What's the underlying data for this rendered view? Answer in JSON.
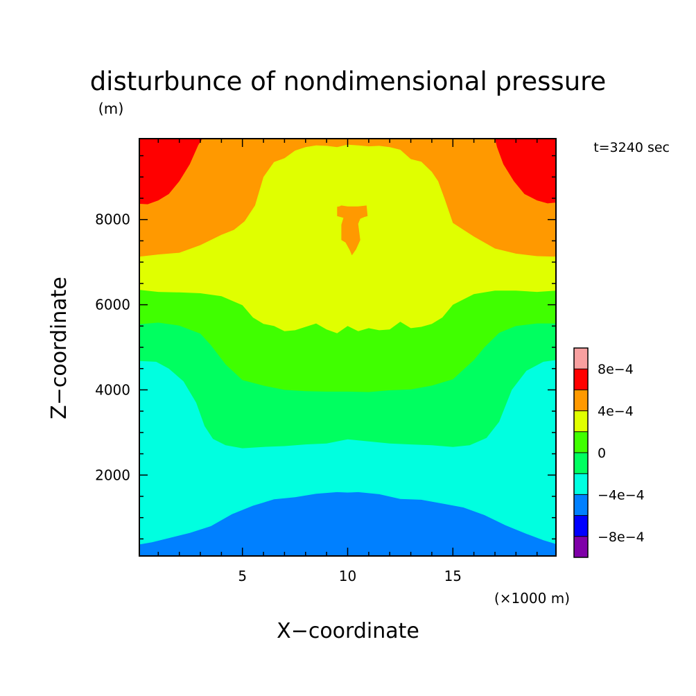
{
  "chart_data": {
    "type": "heatmap",
    "title": "disturbunce of nondimensional pressure",
    "title_unit": "(m)",
    "time_label": "t=3240 sec",
    "xlabel": "X−coordinate",
    "x_unit": "(×1000 m)",
    "ylabel": "Z−coordinate",
    "xlim": [
      0.1,
      19.9
    ],
    "ylim": [
      100,
      9900
    ],
    "x_ticks": [
      5,
      10,
      15
    ],
    "x_tick_labels": [
      "5",
      "10",
      "15"
    ],
    "y_ticks": [
      2000,
      4000,
      6000,
      8000
    ],
    "y_tick_labels": [
      "2000",
      "4000",
      "6000",
      "8000"
    ],
    "colorbar": {
      "levels": [
        -0.001,
        -0.0008,
        -0.0006,
        -0.0004,
        -0.0002,
        0,
        0.0002,
        0.0004,
        0.0006,
        0.0008,
        0.001
      ],
      "tick_labels": [
        "8e−4",
        "4e−4",
        "0",
        "−4e−4",
        "−8e−4"
      ],
      "tick_values": [
        0.0008,
        0.0004,
        0,
        -0.0004,
        -0.0008
      ],
      "colors": [
        "#7f00a8",
        "#0000ff",
        "#0080ff",
        "#00ffe0",
        "#00ff60",
        "#40ff00",
        "#e0ff00",
        "#ff9900",
        "#ff0000",
        "#f8a0a0"
      ]
    },
    "band_levels": [
      {
        "range": [
          -0.0006,
          -0.0004
        ],
        "color": "#0080ff"
      },
      {
        "range": [
          -0.0004,
          -0.0002
        ],
        "color": "#00ffe0"
      },
      {
        "range": [
          -0.0002,
          0
        ],
        "color": "#00ff60"
      },
      {
        "range": [
          0,
          0.0002
        ],
        "color": "#40ff00"
      },
      {
        "range": [
          0.0002,
          0.0004
        ],
        "color": "#e0ff00"
      },
      {
        "range": [
          0.0004,
          0.0006
        ],
        "color": "#ff9900"
      },
      {
        "range": [
          0.0006,
          0.0008
        ],
        "color": "#ff0000"
      }
    ],
    "contours": [
      {
        "name": "boundary-cyan",
        "x": [
          0.1,
          0.7,
          1.5,
          2.5,
          3.5,
          4.5,
          5.5,
          6.5,
          7.5,
          8.5,
          9.5,
          10.0,
          10.5,
          11.5,
          12.5,
          13.5,
          14.5,
          15.5,
          16.5,
          17.5,
          18.5,
          19.3,
          19.9
        ],
        "z": [
          370,
          420,
          520,
          640,
          800,
          1080,
          1280,
          1430,
          1480,
          1560,
          1600,
          1590,
          1600,
          1550,
          1440,
          1420,
          1330,
          1240,
          1060,
          820,
          620,
          470,
          380
        ]
      },
      {
        "name": "boundary-green",
        "x": [
          0.1,
          0.9,
          1.5,
          2.2,
          2.8,
          3.2,
          3.6,
          4.2,
          5.0,
          6.0,
          7.0,
          8.0,
          9.0,
          10.0,
          11.0,
          12.0,
          13.0,
          14.0,
          15.0,
          15.8,
          16.6,
          17.2,
          17.8,
          18.5,
          19.3,
          19.9
        ],
        "z": [
          4680,
          4660,
          4500,
          4200,
          3700,
          3150,
          2850,
          2700,
          2630,
          2660,
          2680,
          2720,
          2740,
          2840,
          2790,
          2740,
          2720,
          2700,
          2660,
          2700,
          2870,
          3250,
          4000,
          4450,
          4660,
          4700
        ]
      },
      {
        "name": "boundary-lightgreen",
        "x": [
          0.1,
          1.0,
          2.0,
          3.0,
          3.5,
          4.2,
          5.0,
          6.0,
          7.0,
          8.0,
          9.0,
          10.0,
          11.0,
          12.0,
          13.0,
          14.0,
          15.0,
          16.0,
          16.5,
          17.2,
          18.0,
          19.0,
          19.9
        ],
        "z": [
          5540,
          5580,
          5510,
          5320,
          5050,
          4600,
          4230,
          4100,
          4000,
          3970,
          3960,
          3960,
          3950,
          3990,
          4010,
          4100,
          4250,
          4700,
          5000,
          5340,
          5500,
          5560,
          5560
        ]
      },
      {
        "name": "boundary-yellow",
        "x": [
          0.1,
          1.0,
          2.0,
          3.0,
          4.0,
          5.0,
          5.5,
          6.0,
          6.5,
          7.0,
          7.5,
          8.0,
          8.5,
          9.0,
          9.5,
          10.0,
          10.5,
          11.0,
          11.5,
          12.0,
          12.5,
          13.0,
          13.5,
          14.0,
          14.5,
          15.0,
          16.0,
          17.0,
          18.0,
          19.0,
          19.9
        ],
        "z": [
          6350,
          6300,
          6290,
          6270,
          6200,
          5990,
          5700,
          5550,
          5500,
          5380,
          5400,
          5480,
          5560,
          5420,
          5330,
          5500,
          5380,
          5450,
          5400,
          5420,
          5600,
          5450,
          5480,
          5550,
          5700,
          6000,
          6250,
          6330,
          6330,
          6300,
          6330
        ]
      },
      {
        "name": "boundary-orange",
        "x": [
          0.1,
          1.0,
          2.0,
          3.0,
          4.0,
          4.6,
          5.1,
          5.6,
          6.0,
          6.5,
          7.0,
          7.5,
          8.0,
          8.5,
          9.0,
          9.5,
          10.0,
          10.5,
          11.0,
          11.5,
          12.0,
          12.5,
          13.0,
          13.5,
          14.0,
          14.3,
          14.6,
          15.0,
          16.0,
          17.0,
          18.0,
          19.0,
          19.9
        ],
        "z": [
          7130,
          7180,
          7220,
          7400,
          7640,
          7760,
          7960,
          8330,
          9000,
          9350,
          9440,
          9620,
          9700,
          9740,
          9730,
          9700,
          9760,
          9740,
          9720,
          9730,
          9700,
          9640,
          9420,
          9360,
          9120,
          8900,
          8500,
          7920,
          7600,
          7320,
          7200,
          7140,
          7130
        ]
      },
      {
        "name": "boundary-red-left",
        "x": [
          0.1,
          0.5,
          1.0,
          1.5,
          2.0,
          2.5,
          2.9,
          3.1
        ],
        "z": [
          8370,
          8360,
          8450,
          8600,
          8900,
          9300,
          9750,
          9900
        ]
      },
      {
        "name": "boundary-red-right",
        "x": [
          17.0,
          17.1,
          17.4,
          17.9,
          18.4,
          19.0,
          19.5,
          19.9
        ],
        "z": [
          9900,
          9700,
          9300,
          8900,
          8600,
          8450,
          8380,
          8400
        ]
      },
      {
        "name": "orange-island",
        "x": [
          9.5,
          9.6,
          9.7,
          10.0,
          10.5,
          10.9,
          10.95,
          10.8,
          10.6,
          10.5,
          10.6,
          10.4,
          10.2,
          10.1,
          9.9,
          9.7,
          9.7,
          9.8,
          9.5
        ],
        "z": [
          8300,
          8310,
          8330,
          8310,
          8310,
          8330,
          8080,
          8060,
          8020,
          7900,
          7520,
          7300,
          7160,
          7280,
          7460,
          7520,
          7880,
          8040,
          8080
        ]
      }
    ]
  }
}
